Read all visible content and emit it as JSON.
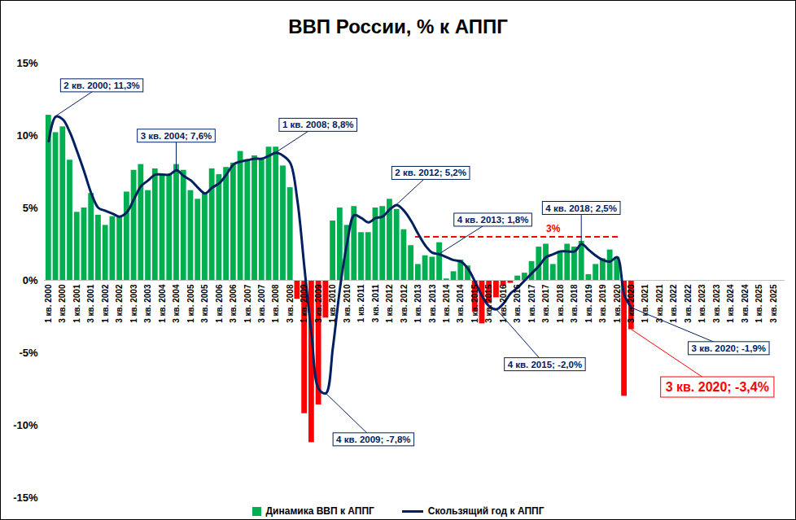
{
  "chart_data": {
    "type": "bar",
    "title": "ВВП России, % к АППГ",
    "categories": [
      "1 кв. 2000",
      null,
      "3 кв. 2000",
      null,
      "1 кв. 2001",
      null,
      "3 кв. 2001",
      null,
      "1 кв. 2002",
      null,
      "3 кв. 2002",
      null,
      "1 кв. 2003",
      null,
      "3 кв. 2003",
      null,
      "1 кв. 2004",
      null,
      "3 кв. 2004",
      null,
      "1 кв. 2005",
      null,
      "3 кв. 2005",
      null,
      "1 кв. 2006",
      null,
      "3 кв. 2006",
      null,
      "1 кв. 2007",
      null,
      "3 кв. 2007",
      null,
      "1 кв. 2008",
      null,
      "3 кв. 2008",
      null,
      "1 кв. 2009",
      null,
      "3 кв. 2009",
      null,
      "1 кв. 2010",
      null,
      "3 кв. 2010",
      null,
      "1 кв. 2011",
      null,
      "3 кв. 2011",
      null,
      "1 кв. 2012",
      null,
      "3 кв. 2012",
      null,
      "1 кв. 2013",
      null,
      "3 кв. 2013",
      null,
      "1 кв. 2014",
      null,
      "3 кв. 2014",
      null,
      "1 кв. 2015",
      null,
      "3 кв. 2015",
      null,
      "1 кв. 2016",
      null,
      "3 кв. 2016",
      null,
      "1 кв. 2017",
      null,
      "3 кв. 2017",
      null,
      "1 кв. 2018",
      null,
      "3 кв. 2018",
      null,
      "1 кв. 2019",
      null,
      "3 кв. 2019",
      null,
      "1 кв. 2020",
      null,
      "3 кв. 2020",
      null,
      "1 кв. 2021",
      null,
      "3 кв. 2021",
      null,
      "1 кв. 2022",
      null,
      "3 кв. 2022",
      null,
      "1 кв. 2023",
      null,
      "3 кв. 2023",
      null,
      "1 кв. 2024",
      null,
      "3 кв. 2024",
      null,
      "1 кв. 2025",
      null,
      "3 кв. 2025",
      null
    ],
    "series": [
      {
        "name": "Динамика ВВП к АППГ",
        "type": "bar",
        "color": "#00b050",
        "values": [
          11.4,
          10.2,
          10.6,
          8.3,
          4.7,
          5.0,
          6.0,
          4.5,
          3.8,
          4.4,
          4.4,
          6.1,
          7.6,
          8.0,
          6.2,
          7.7,
          7.3,
          7.3,
          8.0,
          7.6,
          6.2,
          5.6,
          6.0,
          7.7,
          7.3,
          7.8,
          8.1,
          8.9,
          8.3,
          8.6,
          8.4,
          9.2,
          9.2,
          7.9,
          6.4,
          -1.3,
          -9.2,
          -11.2,
          -8.6,
          -2.6,
          4.1,
          5.0,
          3.8,
          5.1,
          3.3,
          3.3,
          5.0,
          5.1,
          5.6,
          4.9,
          3.5,
          2.4,
          1.1,
          1.7,
          1.6,
          2.6,
          0.1,
          0.6,
          1.4,
          1.0,
          -2.2,
          -3.0,
          -1.6,
          -1.2,
          -0.4,
          -0.2,
          0.3,
          0.5,
          1.3,
          2.3,
          2.5,
          1.1,
          2.0,
          2.5,
          2.3,
          2.7,
          0.4,
          1.1,
          1.5,
          2.1,
          1.6,
          -8.0,
          -3.4,
          null,
          null,
          null,
          null,
          null,
          null,
          null,
          null,
          null,
          null,
          null,
          null,
          null,
          null,
          null,
          null,
          null,
          null,
          null,
          null,
          null
        ],
        "colors": [
          "#00b050",
          "#00b050",
          "#00b050",
          "#00b050",
          "#00b050",
          "#00b050",
          "#00b050",
          "#00b050",
          "#00b050",
          "#00b050",
          "#00b050",
          "#00b050",
          "#00b050",
          "#00b050",
          "#00b050",
          "#00b050",
          "#00b050",
          "#00b050",
          "#00b050",
          "#00b050",
          "#00b050",
          "#00b050",
          "#00b050",
          "#00b050",
          "#00b050",
          "#00b050",
          "#00b050",
          "#00b050",
          "#00b050",
          "#00b050",
          "#00b050",
          "#00b050",
          "#00b050",
          "#00b050",
          "#00b050",
          "#ff0000",
          "#ff0000",
          "#ff0000",
          "#ff0000",
          "#ff0000",
          "#00b050",
          "#00b050",
          "#00b050",
          "#00b050",
          "#00b050",
          "#00b050",
          "#00b050",
          "#00b050",
          "#00b050",
          "#00b050",
          "#00b050",
          "#00b050",
          "#00b050",
          "#00b050",
          "#00b050",
          "#00b050",
          "#00b050",
          "#00b050",
          "#00b050",
          "#00b050",
          "#ff0000",
          "#ff0000",
          "#ff0000",
          "#ff0000",
          "#ff0000",
          "#ff0000",
          "#00b050",
          "#00b050",
          "#00b050",
          "#00b050",
          "#00b050",
          "#00b050",
          "#00b050",
          "#00b050",
          "#00b050",
          "#00b050",
          "#00b050",
          "#00b050",
          "#00b050",
          "#00b050",
          "#00b050",
          "#ff0000",
          "#ff0000",
          null,
          null,
          null,
          null,
          null,
          null,
          null,
          null,
          null,
          null,
          null,
          null,
          null,
          null,
          null,
          null,
          null,
          null,
          null,
          null,
          null
        ]
      },
      {
        "name": "Скользящий год к АППГ",
        "type": "line",
        "color": "#002060",
        "values": [
          9.6,
          11.3,
          11.1,
          10.2,
          8.9,
          7.5,
          6.0,
          5.0,
          4.8,
          4.6,
          4.4,
          4.7,
          5.6,
          6.5,
          6.9,
          7.3,
          7.3,
          7.3,
          7.6,
          7.2,
          6.9,
          6.4,
          6.0,
          6.4,
          6.7,
          7.3,
          8.0,
          8.2,
          8.3,
          8.4,
          8.4,
          8.6,
          8.8,
          8.6,
          8.1,
          5.5,
          0.8,
          -3.8,
          -7.5,
          -7.8,
          -4.6,
          -0.5,
          2.6,
          4.5,
          4.3,
          4.0,
          4.3,
          4.4,
          4.9,
          5.2,
          4.8,
          4.1,
          3.2,
          2.4,
          1.9,
          1.8,
          1.6,
          1.4,
          1.3,
          0.8,
          -0.1,
          -1.1,
          -1.8,
          -2.0,
          -1.6,
          -0.9,
          -0.5,
          0.0,
          0.5,
          1.0,
          1.6,
          1.8,
          2.0,
          2.0,
          2.0,
          2.5,
          2.1,
          1.7,
          1.4,
          1.3,
          1.6,
          -1.0,
          -1.9,
          null,
          null,
          null,
          null,
          null,
          null,
          null,
          null,
          null,
          null,
          null,
          null,
          null,
          null,
          null,
          null,
          null,
          null,
          null,
          null,
          null
        ]
      }
    ],
    "ylim": [
      -15,
      15
    ],
    "yticks": [
      {
        "value": -15,
        "label": "-15%"
      },
      {
        "value": -10,
        "label": "-10%"
      },
      {
        "value": -5,
        "label": "-5%"
      },
      {
        "value": 0,
        "label": "0%"
      },
      {
        "value": 5,
        "label": "5%"
      },
      {
        "value": 10,
        "label": "10%"
      },
      {
        "value": 15,
        "label": "15%"
      }
    ],
    "grid": false,
    "legend": "bottom",
    "reference_lines": [
      {
        "value": 3,
        "label": "3%",
        "color": "#ff0000",
        "line_style": "dashed",
        "from": "1 кв. 2013",
        "to": "1 кв. 2020"
      }
    ],
    "annotations": [
      {
        "text": "2 кв. 2000; 11,3%",
        "series": "Скользящий год к АППГ",
        "index": 1,
        "value": 11.3,
        "color": "#002060"
      },
      {
        "text": "3 кв. 2004; 7,6%",
        "series": "Скользящий год к АППГ",
        "index": 18,
        "value": 7.6,
        "color": "#002060"
      },
      {
        "text": "1 кв. 2008; 8,8%",
        "series": "Скользящий год к АППГ",
        "index": 32,
        "value": 8.8,
        "color": "#002060"
      },
      {
        "text": "4 кв. 2009; -7,8%",
        "series": "Скользящий год к АППГ",
        "index": 39,
        "value": -7.8,
        "color": "#002060"
      },
      {
        "text": "2 кв. 2012; 5,2%",
        "series": "Скользящий год к АППГ",
        "index": 49,
        "value": 5.2,
        "color": "#002060"
      },
      {
        "text": "4 кв. 2013; 1,8%",
        "series": "Скользящий год к АППГ",
        "index": 55,
        "value": 1.8,
        "color": "#002060"
      },
      {
        "text": "4 кв. 2015; -2,0%",
        "series": "Скользящий год к АППГ",
        "index": 63,
        "value": -2.0,
        "color": "#002060"
      },
      {
        "text": "4 кв. 2018; 2,5%",
        "series": "Скользящий год к АППГ",
        "index": 75,
        "value": 2.5,
        "color": "#002060"
      },
      {
        "text": "3 кв. 2020; -1,9%",
        "series": "Скользящий год к АППГ",
        "index": 82,
        "value": -1.9,
        "color": "#002060"
      },
      {
        "text": "3 кв. 2020; -3,4%",
        "series": "Динамика ВВП к АППГ",
        "index": 82,
        "value": -3.4,
        "color": "#ff0000"
      }
    ]
  }
}
